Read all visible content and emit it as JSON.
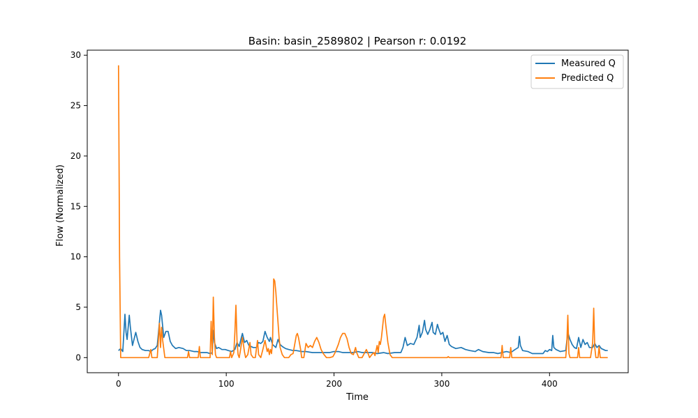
{
  "chart_data": {
    "type": "line",
    "title": "Basin: basin_2589802 | Pearson r: 0.0192",
    "xlabel": "Time",
    "ylabel": "Flow (Normalized)",
    "xlim": [
      -29,
      473
    ],
    "ylim": [
      -1.5,
      30.5
    ],
    "x_ticks": [
      0,
      100,
      200,
      300,
      400
    ],
    "y_ticks": [
      0,
      5,
      10,
      15,
      20,
      25,
      30
    ],
    "grid": false,
    "legend_position": "top-right",
    "series": [
      {
        "name": "Measured Q",
        "color": "#1f77b4",
        "points": [
          [
            0,
            0.7
          ],
          [
            2,
            0.9
          ],
          [
            4,
            0.6
          ],
          [
            6,
            4.3
          ],
          [
            7,
            2.5
          ],
          [
            8,
            1.8
          ],
          [
            10,
            4.2
          ],
          [
            11,
            3.0
          ],
          [
            13,
            1.2
          ],
          [
            16,
            2.5
          ],
          [
            18,
            1.6
          ],
          [
            20,
            1.0
          ],
          [
            22,
            0.8
          ],
          [
            25,
            0.7
          ],
          [
            28,
            0.7
          ],
          [
            30,
            0.6
          ],
          [
            32,
            0.8
          ],
          [
            34,
            0.9
          ],
          [
            36,
            1.2
          ],
          [
            38,
            3.5
          ],
          [
            39,
            4.7
          ],
          [
            40,
            4.2
          ],
          [
            42,
            2.0
          ],
          [
            44,
            2.6
          ],
          [
            46,
            2.6
          ],
          [
            48,
            1.6
          ],
          [
            50,
            1.2
          ],
          [
            53,
            0.9
          ],
          [
            56,
            1.0
          ],
          [
            60,
            0.9
          ],
          [
            63,
            0.7
          ],
          [
            66,
            0.7
          ],
          [
            70,
            0.6
          ],
          [
            73,
            0.6
          ],
          [
            76,
            0.5
          ],
          [
            79,
            0.5
          ],
          [
            82,
            0.5
          ],
          [
            85,
            0.4
          ],
          [
            87,
            0.5
          ],
          [
            88,
            2.7
          ],
          [
            89,
            1.5
          ],
          [
            91,
            0.9
          ],
          [
            93,
            1.0
          ],
          [
            96,
            0.8
          ],
          [
            99,
            0.8
          ],
          [
            102,
            0.7
          ],
          [
            105,
            0.6
          ],
          [
            108,
            0.8
          ],
          [
            110,
            1.5
          ],
          [
            112,
            1.1
          ],
          [
            114,
            2.0
          ],
          [
            115,
            2.4
          ],
          [
            117,
            1.5
          ],
          [
            119,
            1.7
          ],
          [
            121,
            1.2
          ],
          [
            123,
            1.1
          ],
          [
            125,
            1.0
          ],
          [
            128,
            1.0
          ],
          [
            130,
            1.5
          ],
          [
            132,
            1.4
          ],
          [
            134,
            1.6
          ],
          [
            136,
            2.6
          ],
          [
            138,
            2.0
          ],
          [
            140,
            1.6
          ],
          [
            141,
            2.0
          ],
          [
            143,
            1.3
          ],
          [
            146,
            1.0
          ],
          [
            148,
            1.8
          ],
          [
            150,
            1.3
          ],
          [
            152,
            1.1
          ],
          [
            155,
            0.9
          ],
          [
            158,
            0.8
          ],
          [
            162,
            0.7
          ],
          [
            165,
            0.7
          ],
          [
            170,
            0.6
          ],
          [
            174,
            0.6
          ],
          [
            180,
            0.5
          ],
          [
            186,
            0.5
          ],
          [
            192,
            0.5
          ],
          [
            196,
            0.5
          ],
          [
            200,
            0.6
          ],
          [
            204,
            0.6
          ],
          [
            208,
            0.5
          ],
          [
            214,
            0.5
          ],
          [
            218,
            0.5
          ],
          [
            222,
            0.6
          ],
          [
            226,
            0.5
          ],
          [
            232,
            0.5
          ],
          [
            236,
            0.5
          ],
          [
            240,
            0.4
          ],
          [
            246,
            0.5
          ],
          [
            250,
            0.4
          ],
          [
            256,
            0.5
          ],
          [
            262,
            0.5
          ],
          [
            264,
            1.0
          ],
          [
            266,
            2.0
          ],
          [
            268,
            1.2
          ],
          [
            271,
            1.4
          ],
          [
            274,
            1.3
          ],
          [
            277,
            2.0
          ],
          [
            279,
            3.2
          ],
          [
            280,
            2.0
          ],
          [
            282,
            2.5
          ],
          [
            284,
            3.7
          ],
          [
            285,
            2.8
          ],
          [
            287,
            2.3
          ],
          [
            289,
            2.8
          ],
          [
            291,
            3.5
          ],
          [
            292,
            2.5
          ],
          [
            294,
            2.3
          ],
          [
            296,
            3.3
          ],
          [
            297,
            2.9
          ],
          [
            299,
            2.3
          ],
          [
            301,
            2.5
          ],
          [
            303,
            1.6
          ],
          [
            305,
            2.2
          ],
          [
            307,
            1.3
          ],
          [
            309,
            1.1
          ],
          [
            313,
            0.9
          ],
          [
            318,
            1.0
          ],
          [
            322,
            0.8
          ],
          [
            326,
            0.7
          ],
          [
            331,
            0.6
          ],
          [
            334,
            0.8
          ],
          [
            338,
            0.6
          ],
          [
            344,
            0.5
          ],
          [
            348,
            0.5
          ],
          [
            352,
            0.4
          ],
          [
            356,
            0.5
          ],
          [
            360,
            0.6
          ],
          [
            364,
            0.5
          ],
          [
            368,
            0.8
          ],
          [
            371,
            1.0
          ],
          [
            372,
            2.1
          ],
          [
            373,
            1.2
          ],
          [
            375,
            0.7
          ],
          [
            380,
            0.6
          ],
          [
            384,
            0.4
          ],
          [
            390,
            0.4
          ],
          [
            394,
            0.4
          ],
          [
            396,
            0.7
          ],
          [
            398,
            0.6
          ],
          [
            400,
            0.8
          ],
          [
            402,
            0.7
          ],
          [
            403,
            2.2
          ],
          [
            404,
            1.0
          ],
          [
            406,
            0.8
          ],
          [
            410,
            0.6
          ],
          [
            415,
            0.7
          ],
          [
            417,
            2.5
          ],
          [
            419,
            1.8
          ],
          [
            421,
            1.3
          ],
          [
            423,
            1.0
          ],
          [
            425,
            0.9
          ],
          [
            427,
            2.0
          ],
          [
            429,
            1.0
          ],
          [
            431,
            1.8
          ],
          [
            433,
            1.3
          ],
          [
            435,
            1.5
          ],
          [
            437,
            1.0
          ],
          [
            440,
            1.0
          ],
          [
            442,
            1.4
          ],
          [
            444,
            1.0
          ],
          [
            446,
            1.2
          ],
          [
            448,
            0.9
          ],
          [
            450,
            0.8
          ],
          [
            452,
            0.7
          ],
          [
            454,
            0.7
          ]
        ]
      },
      {
        "name": "Predicted Q",
        "color": "#ff7f0e",
        "points": [
          [
            0,
            29.0
          ],
          [
            1,
            10.0
          ],
          [
            2,
            0.0
          ],
          [
            28,
            0.0
          ],
          [
            30,
            0.8
          ],
          [
            31,
            0.0
          ],
          [
            36,
            0.0
          ],
          [
            38,
            3.4
          ],
          [
            39,
            1.0
          ],
          [
            40,
            3.0
          ],
          [
            41,
            1.7
          ],
          [
            43,
            0.0
          ],
          [
            64,
            0.0
          ],
          [
            65,
            0.6
          ],
          [
            66,
            0.0
          ],
          [
            74,
            0.0
          ],
          [
            75,
            1.1
          ],
          [
            76,
            0.0
          ],
          [
            85,
            0.0
          ],
          [
            86,
            3.6
          ],
          [
            87,
            0.3
          ],
          [
            88,
            6.0
          ],
          [
            89,
            2.0
          ],
          [
            90,
            0.3
          ],
          [
            91,
            0.0
          ],
          [
            103,
            0.0
          ],
          [
            104,
            0.6
          ],
          [
            105,
            0.0
          ],
          [
            107,
            0.5
          ],
          [
            108,
            2.5
          ],
          [
            109,
            5.2
          ],
          [
            110,
            1.6
          ],
          [
            111,
            0.3
          ],
          [
            112,
            0.0
          ],
          [
            113,
            0.6
          ],
          [
            115,
            2.0
          ],
          [
            117,
            0.5
          ],
          [
            118,
            0.0
          ],
          [
            120,
            0.3
          ],
          [
            122,
            1.5
          ],
          [
            123,
            0.3
          ],
          [
            125,
            0.0
          ],
          [
            127,
            0.0
          ],
          [
            129,
            1.7
          ],
          [
            130,
            0.3
          ],
          [
            132,
            0.0
          ],
          [
            134,
            0.8
          ],
          [
            136,
            1.7
          ],
          [
            138,
            0.6
          ],
          [
            139,
            0.9
          ],
          [
            140,
            0.3
          ],
          [
            141,
            0.8
          ],
          [
            142,
            0.4
          ],
          [
            143,
            1.6
          ],
          [
            144,
            7.8
          ],
          [
            145,
            7.6
          ],
          [
            146,
            6.5
          ],
          [
            147,
            5.0
          ],
          [
            148,
            3.5
          ],
          [
            149,
            2.0
          ],
          [
            150,
            1.0
          ],
          [
            152,
            0.3
          ],
          [
            154,
            0.0
          ],
          [
            158,
            0.0
          ],
          [
            160,
            0.3
          ],
          [
            162,
            0.4
          ],
          [
            165,
            2.2
          ],
          [
            166,
            2.4
          ],
          [
            167,
            2.0
          ],
          [
            169,
            0.8
          ],
          [
            170,
            0.0
          ],
          [
            172,
            0.0
          ],
          [
            174,
            1.4
          ],
          [
            176,
            1.0
          ],
          [
            178,
            1.2
          ],
          [
            180,
            1.0
          ],
          [
            182,
            1.6
          ],
          [
            184,
            2.0
          ],
          [
            186,
            1.5
          ],
          [
            188,
            0.8
          ],
          [
            190,
            0.4
          ],
          [
            193,
            0.0
          ],
          [
            196,
            0.0
          ],
          [
            199,
            0.1
          ],
          [
            201,
            0.5
          ],
          [
            204,
            1.3
          ],
          [
            206,
            2.0
          ],
          [
            208,
            2.4
          ],
          [
            210,
            2.4
          ],
          [
            212,
            1.9
          ],
          [
            214,
            1.0
          ],
          [
            216,
            0.4
          ],
          [
            218,
            0.3
          ],
          [
            220,
            1.0
          ],
          [
            221,
            0.5
          ],
          [
            223,
            0.0
          ],
          [
            226,
            0.0
          ],
          [
            228,
            0.4
          ],
          [
            230,
            0.8
          ],
          [
            232,
            0.3
          ],
          [
            233,
            0.0
          ],
          [
            235,
            0.3
          ],
          [
            237,
            0.5
          ],
          [
            238,
            0.2
          ],
          [
            240,
            1.2
          ],
          [
            241,
            0.5
          ],
          [
            242,
            1.6
          ],
          [
            243,
            1.3
          ],
          [
            244,
            2.0
          ],
          [
            246,
            4.0
          ],
          [
            247,
            4.3
          ],
          [
            248,
            3.3
          ],
          [
            250,
            1.5
          ],
          [
            252,
            0.3
          ],
          [
            254,
            0.0
          ],
          [
            305,
            0.0
          ],
          [
            306,
            0.1
          ],
          [
            307,
            0.0
          ],
          [
            355,
            0.0
          ],
          [
            356,
            1.2
          ],
          [
            357,
            0.0
          ],
          [
            363,
            0.0
          ],
          [
            364,
            1.0
          ],
          [
            365,
            0.0
          ],
          [
            415,
            0.0
          ],
          [
            416,
            1.3
          ],
          [
            417,
            4.2
          ],
          [
            418,
            0.4
          ],
          [
            419,
            0.0
          ],
          [
            426,
            0.0
          ],
          [
            427,
            1.0
          ],
          [
            428,
            0.0
          ],
          [
            438,
            0.0
          ],
          [
            440,
            1.5
          ],
          [
            441,
            4.9
          ],
          [
            442,
            1.0
          ],
          [
            443,
            0.0
          ],
          [
            445,
            0.0
          ],
          [
            446,
            1.1
          ],
          [
            447,
            0.0
          ],
          [
            454,
            0.0
          ]
        ]
      }
    ]
  }
}
